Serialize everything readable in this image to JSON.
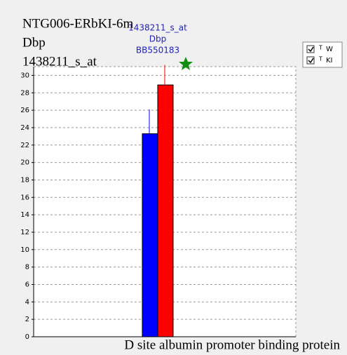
{
  "chart_data": {
    "type": "bar",
    "title": [
      "NTG006-ERbKI-6m",
      "Dbp",
      "1438211_s_at"
    ],
    "annotations": [
      "1438211_s_at",
      "Dbp",
      "BB550183"
    ],
    "xlabel": "D site albumin promoter binding protein",
    "series": [
      {
        "name": "W",
        "marker_label": "T",
        "color": "#0000ff",
        "values": [
          23.3
        ],
        "errors": [
          2.8
        ]
      },
      {
        "name": "KI",
        "marker_label": "T",
        "color": "#ff0000",
        "values": [
          28.9
        ],
        "errors": [
          2.3
        ]
      }
    ],
    "ylim": [
      0,
      31
    ],
    "yticks": [
      0,
      2,
      4,
      6,
      8,
      10,
      12,
      14,
      16,
      18,
      20,
      22,
      24,
      26,
      28,
      30
    ],
    "grid": true
  }
}
